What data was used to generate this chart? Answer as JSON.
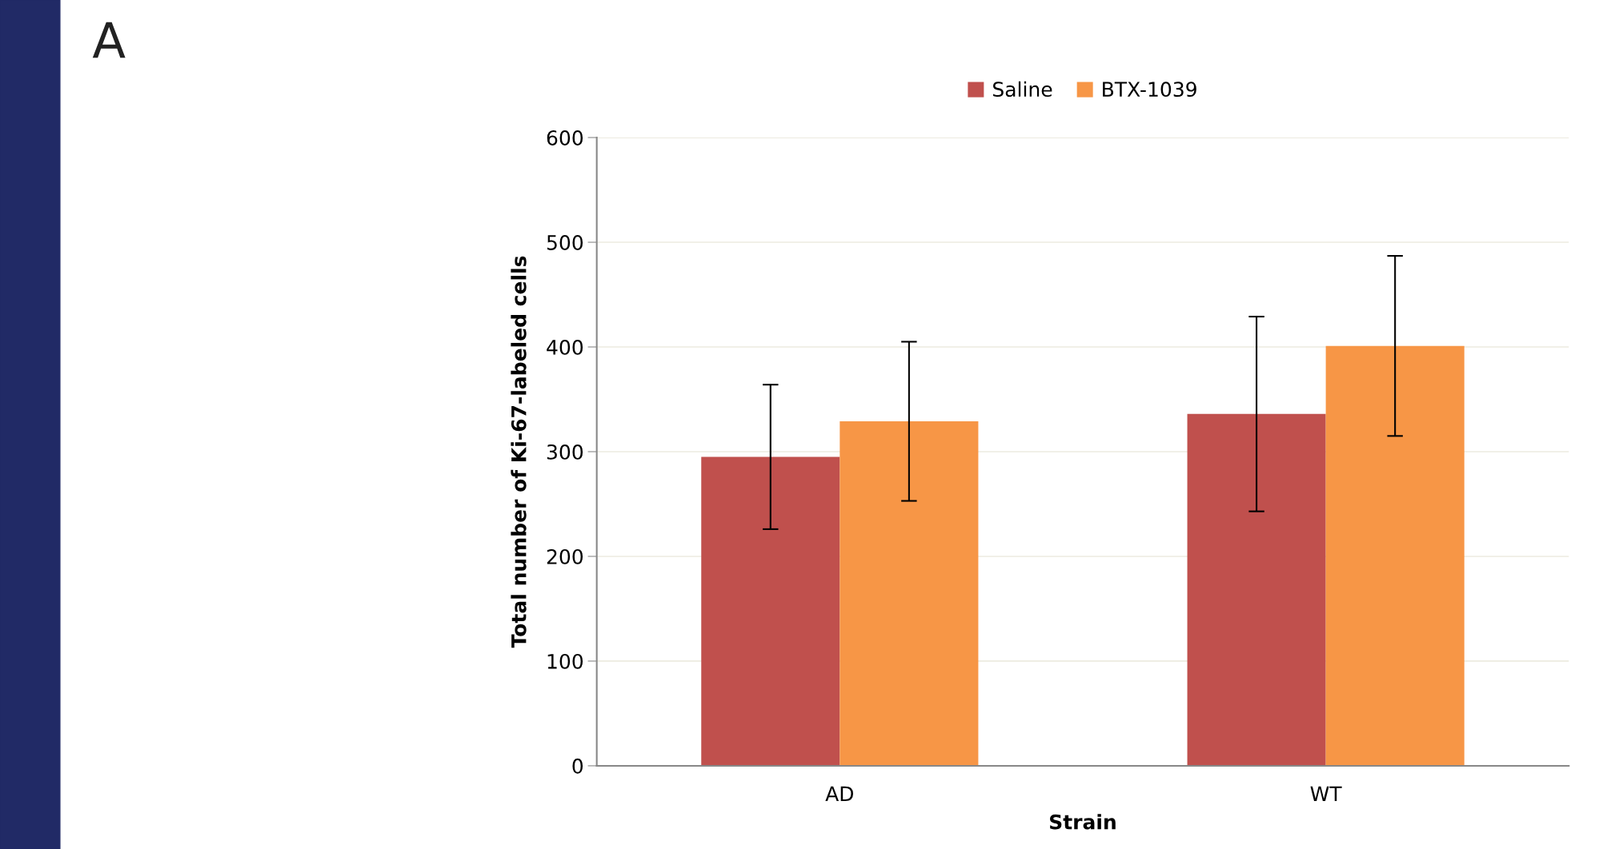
{
  "chart_data": {
    "type": "bar",
    "categories": [
      "AD",
      "WT"
    ],
    "xlabel": "Strain",
    "ylabel": "Total number of Ki-67-labeled cells",
    "series": [
      {
        "name": "Saline",
        "color": "#c0504d",
        "values": [
          295,
          336
        ],
        "errors": [
          69,
          93
        ]
      },
      {
        "name": "BTX-1039",
        "color": "#f79646",
        "values": [
          329,
          401
        ],
        "errors": [
          76,
          86
        ]
      }
    ],
    "ylim": [
      0,
      600
    ],
    "yticks": [
      0,
      100,
      200,
      300,
      400,
      500,
      600
    ],
    "grid": "y",
    "legend": "top",
    "annotations": [
      "A"
    ]
  }
}
